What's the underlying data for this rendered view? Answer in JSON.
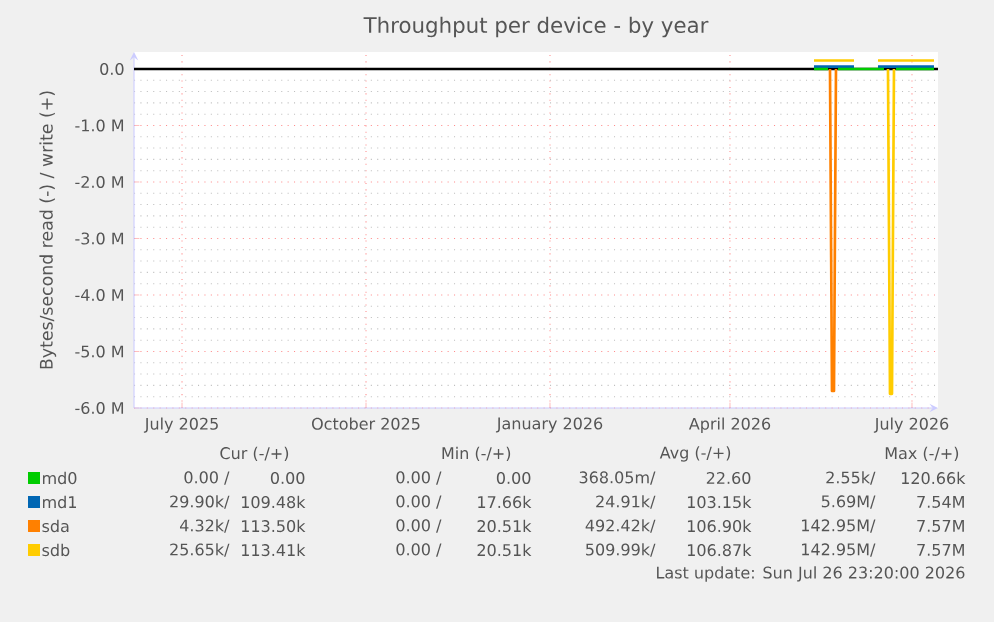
{
  "chart_data": {
    "type": "line",
    "title": "Throughput per device - by year",
    "ylabel": "Bytes/second read (-) / write (+)",
    "xlim": [
      "2025-06-07",
      "2026-07-14"
    ],
    "ylim": [
      -6000000,
      300000
    ],
    "xticks": [
      {
        "value": "2025-07-01",
        "label": "July 2025"
      },
      {
        "value": "2025-10-01",
        "label": "October 2025"
      },
      {
        "value": "2026-01-01",
        "label": "January 2026"
      },
      {
        "value": "2026-04-01",
        "label": "April 2026"
      },
      {
        "value": "2026-07-01",
        "label": "July 2026"
      }
    ],
    "yticks": [
      {
        "value": 0,
        "label": "0.0"
      },
      {
        "value": -1000000,
        "label": "-1.0 M"
      },
      {
        "value": -2000000,
        "label": "-2.0 M"
      },
      {
        "value": -3000000,
        "label": "-3.0 M"
      },
      {
        "value": -4000000,
        "label": "-4.0 M"
      },
      {
        "value": -5000000,
        "label": "-5.0 M"
      },
      {
        "value": -6000000,
        "label": "-6.0 M"
      }
    ],
    "grid": true,
    "legend": "bottom",
    "line_style": "solid",
    "marker": "none",
    "ref_lines": [
      {
        "axis": "y",
        "value": 0,
        "color": "#000000"
      }
    ],
    "series": [
      {
        "name": "md0",
        "color": "#00cc00",
        "x": [
          "2026-05-13",
          "2026-05-20",
          "2026-05-21",
          "2026-05-25",
          "2026-06-17",
          "2026-06-18",
          "2026-06-23",
          "2026-07-12"
        ],
        "values": [
          0,
          0,
          null,
          0,
          0,
          null,
          0,
          0
        ]
      },
      {
        "name": "md1",
        "color": "#0066b3",
        "x": [
          "2026-05-13",
          "2026-06-02",
          "2026-06-03",
          "2026-06-13",
          "2026-06-14",
          "2026-07-12"
        ],
        "values": [
          40000,
          40000,
          null,
          null,
          40000,
          40000
        ]
      },
      {
        "name": "sda",
        "color": "#ff8000",
        "x": [
          "2026-05-21",
          "2026-05-22",
          "2026-05-23",
          "2026-05-24"
        ],
        "values": [
          0,
          -5700000,
          -5700000,
          0
        ]
      },
      {
        "name": "sdb",
        "color": "#ffcc00",
        "x": [
          "2026-05-13",
          "2026-06-02",
          "2026-06-03",
          "2026-06-13",
          "2026-06-14",
          "2026-07-12"
        ],
        "values": [
          150000,
          150000,
          null,
          null,
          150000,
          150000
        ]
      },
      {
        "color": "#ffcc00",
        "x": [
          "2026-06-19",
          "2026-06-20",
          "2026-06-21",
          "2026-06-22"
        ],
        "values": [
          0,
          -5750000,
          -5750000,
          0
        ]
      }
    ],
    "annotations": [
      "Cur (-/+)",
      "Min (-/+)",
      "Avg (-/+)",
      "Max (-/+)",
      "0.00 /",
      "0.00",
      "0.00 /",
      "0.00",
      "368.05m/",
      "22.60",
      "2.55k/",
      "120.66k",
      "29.90k/",
      "109.48k",
      "0.00 /",
      "17.66k",
      "24.91k/",
      "103.15k",
      "5.69M/",
      "7.54M",
      "4.32k/",
      "113.50k",
      "0.00 /",
      "20.51k",
      "492.42k/",
      "106.90k",
      "142.95M/",
      "7.57M",
      "25.65k/",
      "113.41k",
      "0.00 /",
      "20.51k",
      "509.99k/",
      "106.87k",
      "142.95M/",
      "7.57M",
      "Last update: Sun Jul 26 23:20:00 2026"
    ]
  }
}
